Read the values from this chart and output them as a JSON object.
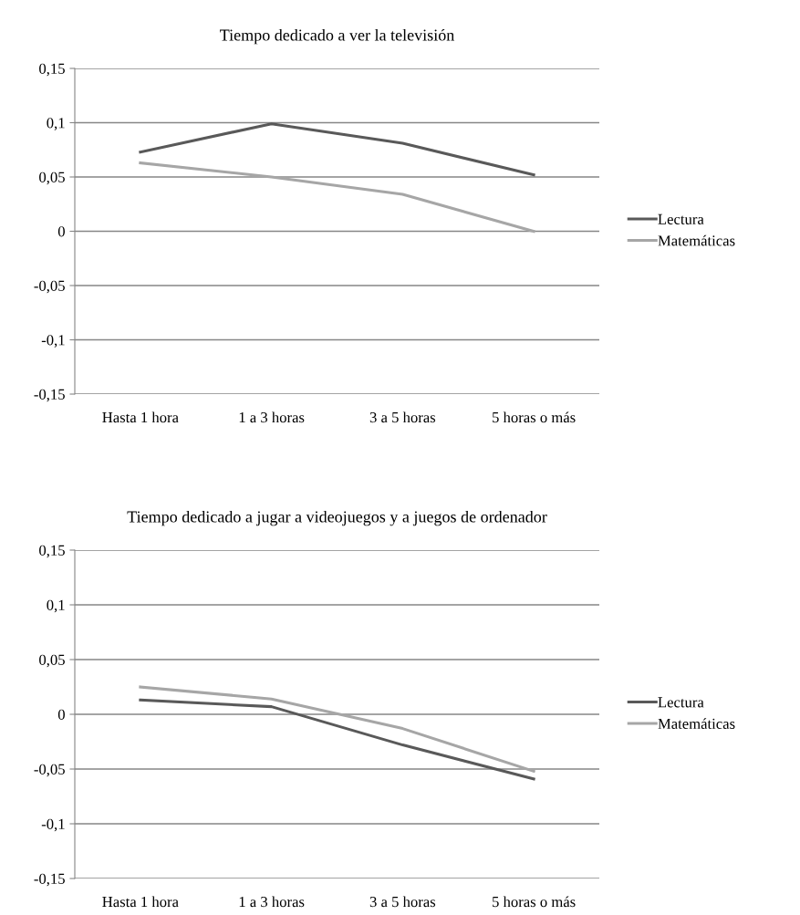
{
  "chart_data": [
    {
      "type": "line",
      "title": "Tiempo dedicado a ver la televisión",
      "categories": [
        "Hasta 1 hora",
        "1 a 3 horas",
        "3 a 5 horas",
        "5 horas o más"
      ],
      "series": [
        {
          "name": "Lectura",
          "color": "#595959",
          "values": [
            0.073,
            0.099,
            0.081,
            0.052
          ]
        },
        {
          "name": "Matemáticas",
          "color": "#a6a6a6",
          "values": [
            0.063,
            0.05,
            0.034,
            0.0
          ]
        }
      ],
      "ylim": [
        -0.15,
        0.15
      ],
      "yticks": [
        {
          "value": -0.15,
          "label": "-0,15"
        },
        {
          "value": -0.1,
          "label": "-0,1"
        },
        {
          "value": -0.05,
          "label": "-0,05"
        },
        {
          "value": 0,
          "label": "0"
        },
        {
          "value": 0.05,
          "label": "0,05"
        },
        {
          "value": 0.1,
          "label": "0,1"
        },
        {
          "value": 0.15,
          "label": "0,15"
        }
      ],
      "grid": "y",
      "legend": "right",
      "marker": "none",
      "line_style": "solid"
    },
    {
      "type": "line",
      "title": "Tiempo dedicado a jugar a videojuegos y a juegos de ordenador",
      "categories": [
        "Hasta 1 hora",
        "1 a 3 horas",
        "3 a 5 horas",
        "5 horas o más"
      ],
      "series": [
        {
          "name": "Lectura",
          "color": "#595959",
          "values": [
            0.013,
            0.007,
            -0.028,
            -0.059
          ]
        },
        {
          "name": "Matemáticas",
          "color": "#a6a6a6",
          "values": [
            0.025,
            0.014,
            -0.013,
            -0.052
          ]
        }
      ],
      "ylim": [
        -0.15,
        0.15
      ],
      "yticks": [
        {
          "value": -0.15,
          "label": "-0,15"
        },
        {
          "value": -0.1,
          "label": "-0,1"
        },
        {
          "value": -0.05,
          "label": "-0,05"
        },
        {
          "value": 0,
          "label": "0"
        },
        {
          "value": 0.05,
          "label": "0,05"
        },
        {
          "value": 0.1,
          "label": "0,1"
        },
        {
          "value": 0.15,
          "label": "0,15"
        }
      ],
      "grid": "y",
      "legend": "right",
      "marker": "none",
      "line_style": "solid"
    }
  ]
}
